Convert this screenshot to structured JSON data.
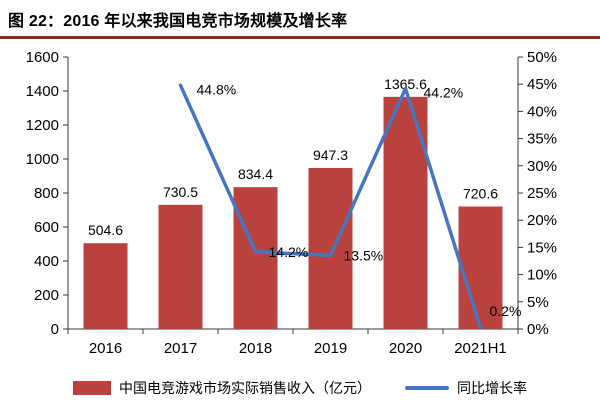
{
  "title": "图 22：2016 年以来我国电竞市场规模及增长率",
  "chart_data": {
    "type": "bar+line",
    "categories": [
      "2016",
      "2017",
      "2018",
      "2019",
      "2020",
      "2021H1"
    ],
    "series": [
      {
        "name": "中国电竞游戏市场实际销售收入（亿元）",
        "type": "bar",
        "axis": "left",
        "color": "#b9423e",
        "values": [
          504.6,
          730.5,
          834.4,
          947.3,
          1365.6,
          720.6
        ],
        "labels": [
          "504.6",
          "730.5",
          "834.4",
          "947.3",
          "1365.6",
          "720.6"
        ]
      },
      {
        "name": "同比增长率",
        "type": "line",
        "axis": "right",
        "color": "#4576c2",
        "values": [
          null,
          44.8,
          14.2,
          13.5,
          44.2,
          0.2
        ],
        "labels": [
          "",
          "44.8%",
          "14.2%",
          "13.5%",
          "44.2%",
          "0.2%"
        ]
      }
    ],
    "left_axis": {
      "min": 0,
      "max": 1600,
      "step": 200,
      "ticks": [
        "0",
        "200",
        "400",
        "600",
        "800",
        "1000",
        "1200",
        "1400",
        "1600"
      ]
    },
    "right_axis": {
      "min": 0,
      "max": 50,
      "step": 5,
      "ticks": [
        "0%",
        "5%",
        "10%",
        "15%",
        "20%",
        "25%",
        "30%",
        "35%",
        "40%",
        "45%",
        "50%"
      ]
    },
    "grid": false,
    "legend_position": "bottom"
  },
  "colors": {
    "divider": "#8c2b1e",
    "axis": "#3a3a3a",
    "text": "#000000"
  }
}
